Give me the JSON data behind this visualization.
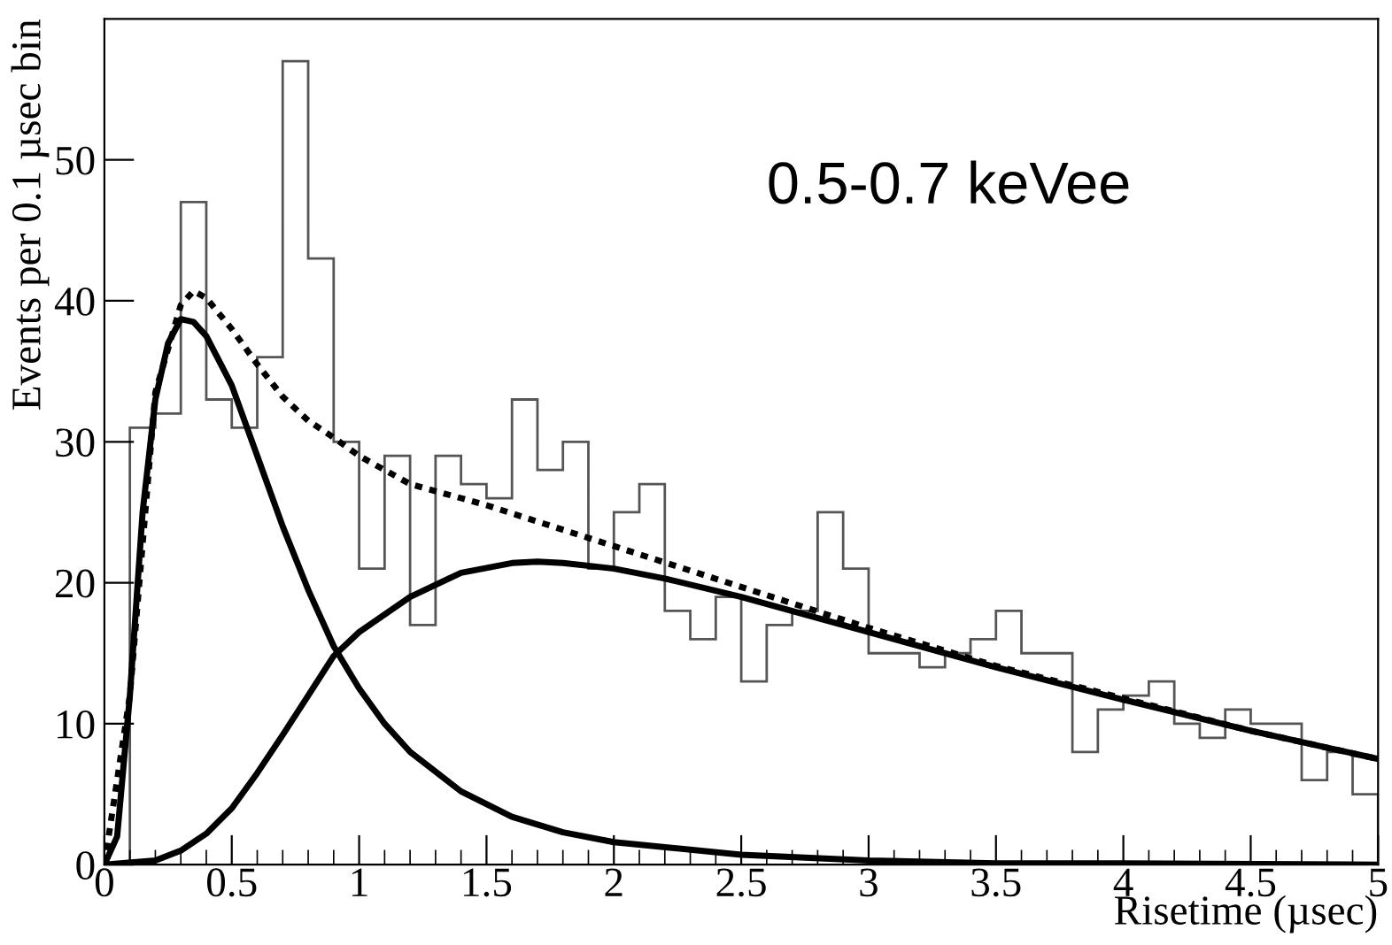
{
  "chart_data": {
    "type": "histogram",
    "xlabel": "Risetime (µsec)",
    "ylabel": "Events per 0.1 µsec bin",
    "annotations": [
      "0.5-0.7 keVee"
    ],
    "bins": [
      0,
      0.1,
      0.2,
      0.3,
      0.4,
      0.5,
      0.6,
      0.7,
      0.8,
      0.9,
      1.0,
      1.1,
      1.2,
      1.3,
      1.4,
      1.5,
      1.6,
      1.7,
      1.8,
      1.9,
      2.0,
      2.1,
      2.2,
      2.3,
      2.4,
      2.5,
      2.6,
      2.7,
      2.8,
      2.9,
      3.0,
      3.1,
      3.2,
      3.3,
      3.4,
      3.5,
      3.6,
      3.7,
      3.8,
      3.9,
      4.0,
      4.1,
      4.2,
      4.3,
      4.4,
      4.5,
      4.6,
      4.7,
      4.8,
      4.9,
      5.0
    ],
    "values": [
      0,
      31,
      32,
      47,
      33,
      31,
      36,
      57,
      43,
      30,
      21,
      29,
      17,
      29,
      27,
      26,
      33,
      28,
      30,
      21,
      25,
      27,
      18,
      16,
      19,
      13,
      17,
      18,
      25,
      21,
      15,
      15,
      14,
      15,
      16,
      18,
      15,
      15,
      8,
      11,
      12,
      13,
      10,
      9,
      11,
      10,
      10,
      6,
      8,
      5
    ],
    "color": "#555555",
    "series": [
      {
        "type": "line",
        "color": "#000000",
        "line_style": "solid",
        "x": [
          0,
          0.05,
          0.1,
          0.15,
          0.2,
          0.25,
          0.3,
          0.35,
          0.4,
          0.5,
          0.6,
          0.7,
          0.8,
          0.9,
          1.0,
          1.1,
          1.2,
          1.4,
          1.6,
          1.8,
          2.0,
          2.5,
          3.0,
          3.5,
          4.0,
          5.0
        ],
        "values": [
          0,
          2,
          12,
          25,
          33,
          37,
          38.7,
          38.5,
          37.5,
          34,
          29,
          24,
          19.5,
          15.5,
          12.5,
          10,
          8,
          5.2,
          3.4,
          2.3,
          1.6,
          0.7,
          0.3,
          0.1,
          0.1,
          0
        ]
      },
      {
        "type": "line",
        "color": "#000000",
        "line_style": "solid",
        "x": [
          0,
          0.2,
          0.3,
          0.4,
          0.5,
          0.6,
          0.7,
          0.8,
          0.9,
          1.0,
          1.2,
          1.4,
          1.6,
          1.7,
          1.8,
          2.0,
          2.2,
          2.5,
          3.0,
          3.5,
          4.0,
          4.5,
          5.0
        ],
        "values": [
          0,
          0.3,
          1,
          2.2,
          4,
          6.5,
          9.2,
          12,
          14.8,
          16.5,
          19,
          20.7,
          21.4,
          21.5,
          21.4,
          21,
          20.3,
          19,
          16.5,
          14,
          11.7,
          9.5,
          7.5
        ]
      },
      {
        "type": "line",
        "color": "#000000",
        "line_style": "dotted",
        "x": [
          0,
          0.1,
          0.2,
          0.3,
          0.35,
          0.4,
          0.5,
          0.6,
          0.7,
          0.8,
          0.9,
          1.0,
          1.2,
          1.5,
          2.0,
          2.5,
          3.0,
          3.5,
          4.0,
          4.5,
          5.0
        ],
        "values": [
          0,
          12,
          33.5,
          39.7,
          40.7,
          40.2,
          38,
          35.5,
          33.2,
          31.5,
          30.3,
          29,
          27,
          25.5,
          22.6,
          19.7,
          16.8,
          14.1,
          11.8,
          9.5,
          7.5
        ]
      }
    ],
    "xlim": [
      0,
      5
    ],
    "ylim": [
      0,
      60
    ],
    "xticks": [
      0,
      0.5,
      1,
      1.5,
      2,
      2.5,
      3,
      3.5,
      4,
      4.5,
      5
    ],
    "yticks": [
      0,
      10,
      20,
      30,
      40,
      50
    ],
    "grid": false,
    "legend": false
  }
}
